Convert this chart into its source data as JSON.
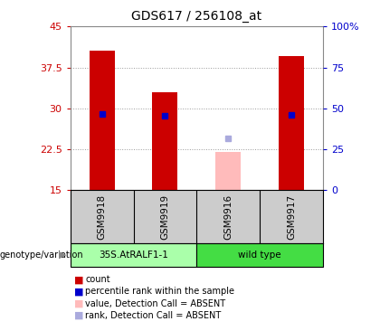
{
  "title": "GDS617 / 256108_at",
  "samples": [
    "GSM9918",
    "GSM9919",
    "GSM9916",
    "GSM9917"
  ],
  "bar_values": [
    40.5,
    33.0,
    null,
    39.5
  ],
  "bar_color": "#cc0000",
  "absent_bar_value": 22.0,
  "absent_bar_idx": 2,
  "absent_bar_color": "#ffbbbb",
  "rank_values": [
    29.0,
    28.7,
    null,
    28.9
  ],
  "rank_color": "#0000cc",
  "absent_rank_value": 24.5,
  "absent_rank_idx": 2,
  "absent_rank_color": "#aaaadd",
  "ylim_left": [
    15,
    45
  ],
  "ylim_right": [
    0,
    100
  ],
  "yticks_left": [
    15,
    22.5,
    30,
    37.5,
    45
  ],
  "yticks_right": [
    0,
    25,
    50,
    75,
    100
  ],
  "ytick_labels_left": [
    "15",
    "22.5",
    "30",
    "37.5",
    "45"
  ],
  "ytick_labels_right": [
    "0",
    "25",
    "50",
    "75",
    "100%"
  ],
  "left_tick_color": "#cc0000",
  "right_tick_color": "#0000cc",
  "bar_width": 0.4,
  "rank_marker_size": 5,
  "grid_linestyle": ":",
  "grid_color": "#999999",
  "group1_label": "35S.AtRALF1-1",
  "group2_label": "wild type",
  "group1_color": "#aaffaa",
  "group2_color": "#44dd44",
  "group_label_text": "genotype/variation",
  "sample_bg_color": "#cccccc",
  "legend_items": [
    {
      "label": "count",
      "color": "#cc0000"
    },
    {
      "label": "percentile rank within the sample",
      "color": "#0000cc"
    },
    {
      "label": "value, Detection Call = ABSENT",
      "color": "#ffbbbb"
    },
    {
      "label": "rank, Detection Call = ABSENT",
      "color": "#aaaadd"
    }
  ],
  "plot_bg": "#ffffff",
  "fig_bg": "#ffffff"
}
